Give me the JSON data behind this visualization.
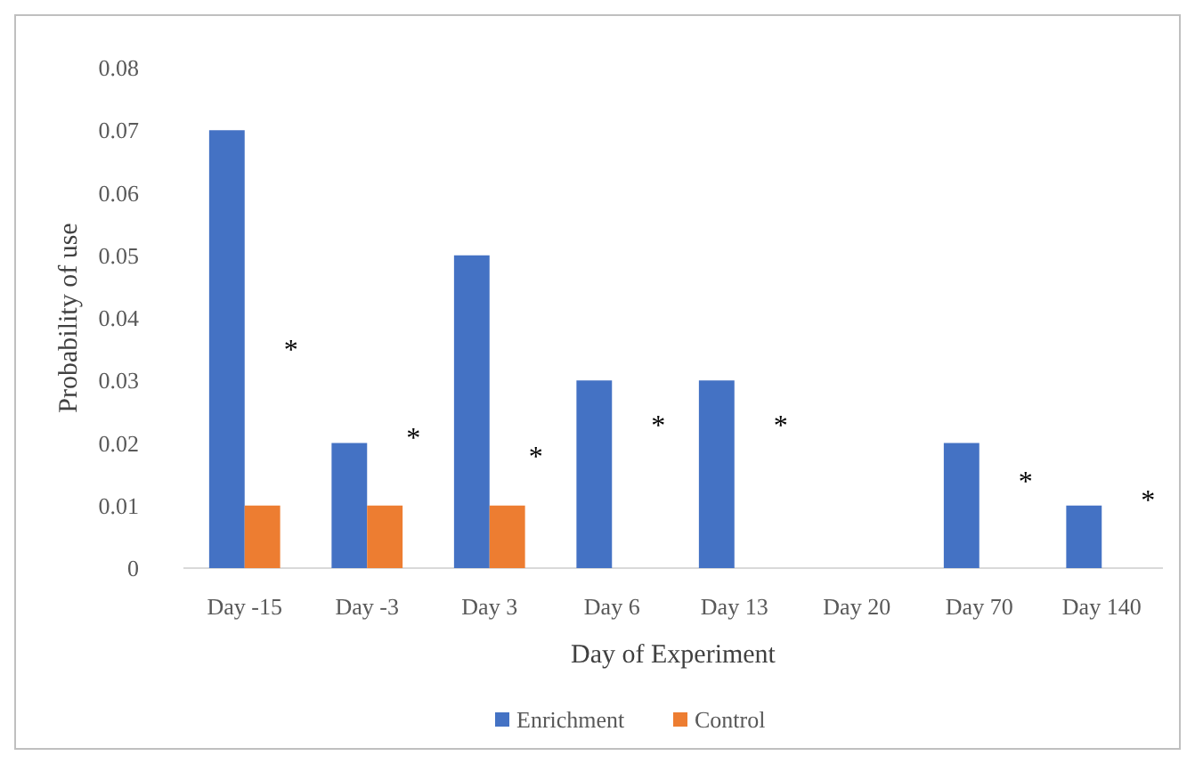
{
  "chart_data": {
    "type": "bar",
    "xlabel": "Day of Experiment",
    "ylabel": "Probability of use",
    "categories": [
      "Day -15",
      "Day -3",
      "Day 3",
      "Day 6",
      "Day 13",
      "Day 20",
      "Day 70",
      "Day 140"
    ],
    "series": [
      {
        "name": "Enrichment",
        "color": "#4472c4",
        "values": [
          0.07,
          0.02,
          0.05,
          0.03,
          0.03,
          0,
          0.02,
          0.01
        ]
      },
      {
        "name": "Control",
        "color": "#ed7d31",
        "values": [
          0.01,
          0.01,
          0.01,
          0,
          0,
          0,
          0,
          0
        ]
      }
    ],
    "ylim": [
      0,
      0.08
    ],
    "yticks": [
      {
        "value": 0,
        "label": "0"
      },
      0.01,
      0.02,
      0.03,
      0.04,
      0.05,
      0.06,
      0.07,
      0.08
    ],
    "legend": "bottom",
    "annotations": [
      {
        "text": "*",
        "x": "Day -15",
        "y": 0.035
      },
      {
        "text": "*",
        "x": "Day -3",
        "y": 0.021
      },
      {
        "text": "*",
        "x": "Day 3",
        "y": 0.018
      },
      {
        "text": "*",
        "x": "Day 6",
        "y": 0.023
      },
      {
        "text": "*",
        "x": "Day 13",
        "y": 0.023
      },
      {
        "text": "*",
        "x": "Day 70",
        "y": 0.014
      },
      {
        "text": "*",
        "x": "Day 140",
        "y": 0.011
      }
    ]
  }
}
